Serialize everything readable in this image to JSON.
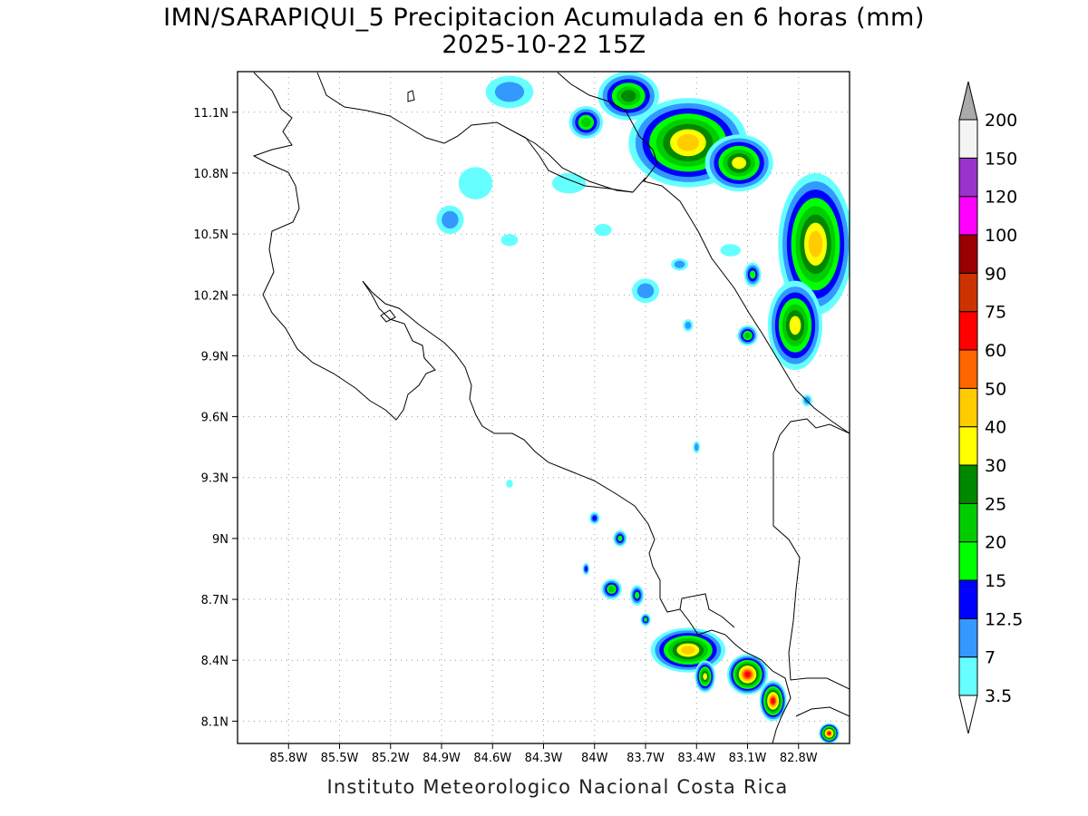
{
  "title": {
    "line1": "IMN/SARAPIQUI_5 Precipitacion Acumulada en 6 horas (mm)",
    "line2": "2025-10-22 15Z"
  },
  "credit": "Instituto Meteorologico Nacional Costa Rica",
  "map": {
    "region": "Costa Rica",
    "lon_range": [
      -86.1,
      -82.5
    ],
    "lat_range": [
      7.99,
      11.3
    ],
    "lon_ticks": [
      {
        "value": -85.8,
        "label": "85.8W"
      },
      {
        "value": -85.5,
        "label": "85.5W"
      },
      {
        "value": -85.2,
        "label": "85.2W"
      },
      {
        "value": -84.9,
        "label": "84.9W"
      },
      {
        "value": -84.6,
        "label": "84.6W"
      },
      {
        "value": -84.3,
        "label": "84.3W"
      },
      {
        "value": -84.0,
        "label": "84W"
      },
      {
        "value": -83.7,
        "label": "83.7W"
      },
      {
        "value": -83.4,
        "label": "83.4W"
      },
      {
        "value": -83.1,
        "label": "83.1W"
      },
      {
        "value": -82.8,
        "label": "82.8W"
      }
    ],
    "lat_ticks": [
      {
        "value": 11.1,
        "label": "11.1N"
      },
      {
        "value": 10.8,
        "label": "10.8N"
      },
      {
        "value": 10.5,
        "label": "10.5N"
      },
      {
        "value": 10.2,
        "label": "10.2N"
      },
      {
        "value": 9.9,
        "label": "9.9N"
      },
      {
        "value": 9.6,
        "label": "9.6N"
      },
      {
        "value": 9.3,
        "label": "9.3N"
      },
      {
        "value": 9.0,
        "label": "9N"
      },
      {
        "value": 8.7,
        "label": "8.7N"
      },
      {
        "value": 8.4,
        "label": "8.4N"
      },
      {
        "value": 8.1,
        "label": "8.1N"
      }
    ],
    "grid": true
  },
  "legend": {
    "labels": [
      "3.5",
      "7",
      "12.5",
      "15",
      "20",
      "25",
      "30",
      "40",
      "50",
      "60",
      "75",
      "90",
      "100",
      "120",
      "150",
      "200"
    ],
    "colors": [
      "#ffffff",
      "#66ffff",
      "#3399ff",
      "#0000ff",
      "#00ff00",
      "#00cc00",
      "#008800",
      "#ffff00",
      "#ffcc00",
      "#ff6600",
      "#ff0000",
      "#cc3300",
      "#990000",
      "#ff00ff",
      "#9933cc",
      "#f4f4f4",
      "#aaaaaa"
    ]
  },
  "rain_areas": [
    {
      "lon": -83.45,
      "lat": 10.95,
      "rlon": 0.35,
      "rlat": 0.22,
      "max_index": 8
    },
    {
      "lon": -82.7,
      "lat": 10.45,
      "rlon": 0.22,
      "rlat": 0.35,
      "max_index": 8
    },
    {
      "lon": -82.82,
      "lat": 10.05,
      "rlon": 0.16,
      "rlat": 0.22,
      "max_index": 7
    },
    {
      "lon": -83.15,
      "lat": 10.85,
      "rlon": 0.2,
      "rlat": 0.14,
      "max_index": 7
    },
    {
      "lon": -83.8,
      "lat": 11.18,
      "rlon": 0.18,
      "rlat": 0.12,
      "max_index": 6
    },
    {
      "lon": -84.05,
      "lat": 11.05,
      "rlon": 0.1,
      "rlat": 0.08,
      "max_index": 5
    },
    {
      "lon": -84.5,
      "lat": 11.2,
      "rlon": 0.14,
      "rlat": 0.08,
      "max_index": 2
    },
    {
      "lon": -83.07,
      "lat": 10.3,
      "rlon": 0.05,
      "rlat": 0.06,
      "max_index": 4
    },
    {
      "lon": -83.1,
      "lat": 10.0,
      "rlon": 0.06,
      "rlat": 0.05,
      "max_index": 5
    },
    {
      "lon": -84.15,
      "lat": 10.75,
      "rlon": 0.1,
      "rlat": 0.05,
      "max_index": 1
    },
    {
      "lon": -84.7,
      "lat": 10.75,
      "rlon": 0.1,
      "rlat": 0.08,
      "max_index": 1
    },
    {
      "lon": -84.85,
      "lat": 10.57,
      "rlon": 0.08,
      "rlat": 0.07,
      "max_index": 2
    },
    {
      "lon": -84.5,
      "lat": 10.47,
      "rlon": 0.05,
      "rlat": 0.03,
      "max_index": 1
    },
    {
      "lon": -83.7,
      "lat": 10.22,
      "rlon": 0.08,
      "rlat": 0.06,
      "max_index": 2
    },
    {
      "lon": -83.5,
      "lat": 10.35,
      "rlon": 0.05,
      "rlat": 0.03,
      "max_index": 2
    },
    {
      "lon": -83.2,
      "lat": 10.42,
      "rlon": 0.06,
      "rlat": 0.03,
      "max_index": 1
    },
    {
      "lon": -83.95,
      "lat": 10.52,
      "rlon": 0.05,
      "rlat": 0.03,
      "max_index": 1
    },
    {
      "lon": -83.45,
      "lat": 10.05,
      "rlon": 0.03,
      "rlat": 0.03,
      "max_index": 2
    },
    {
      "lon": -82.75,
      "lat": 9.68,
      "rlon": 0.03,
      "rlat": 0.03,
      "max_index": 2
    },
    {
      "lon": -83.4,
      "lat": 9.45,
      "rlon": 0.02,
      "rlat": 0.03,
      "max_index": 2
    },
    {
      "lon": -84.5,
      "lat": 9.27,
      "rlon": 0.02,
      "rlat": 0.02,
      "max_index": 1
    },
    {
      "lon": -84.0,
      "lat": 9.1,
      "rlon": 0.03,
      "rlat": 0.03,
      "max_index": 3
    },
    {
      "lon": -83.85,
      "lat": 9.0,
      "rlon": 0.04,
      "rlat": 0.04,
      "max_index": 4
    },
    {
      "lon": -84.05,
      "lat": 8.85,
      "rlon": 0.02,
      "rlat": 0.03,
      "max_index": 3
    },
    {
      "lon": -83.9,
      "lat": 8.75,
      "rlon": 0.06,
      "rlat": 0.05,
      "max_index": 5
    },
    {
      "lon": -83.75,
      "lat": 8.72,
      "rlon": 0.04,
      "rlat": 0.05,
      "max_index": 4
    },
    {
      "lon": -83.7,
      "lat": 8.6,
      "rlon": 0.03,
      "rlat": 0.03,
      "max_index": 4
    },
    {
      "lon": -83.45,
      "lat": 8.45,
      "rlon": 0.22,
      "rlat": 0.11,
      "max_index": 8
    },
    {
      "lon": -83.1,
      "lat": 8.33,
      "rlon": 0.12,
      "rlat": 0.1,
      "max_index": 10
    },
    {
      "lon": -82.95,
      "lat": 8.2,
      "rlon": 0.08,
      "rlat": 0.1,
      "max_index": 10
    },
    {
      "lon": -83.35,
      "lat": 8.32,
      "rlon": 0.06,
      "rlat": 0.08,
      "max_index": 7
    },
    {
      "lon": -82.62,
      "lat": 8.04,
      "rlon": 0.06,
      "rlat": 0.05,
      "max_index": 10
    }
  ]
}
